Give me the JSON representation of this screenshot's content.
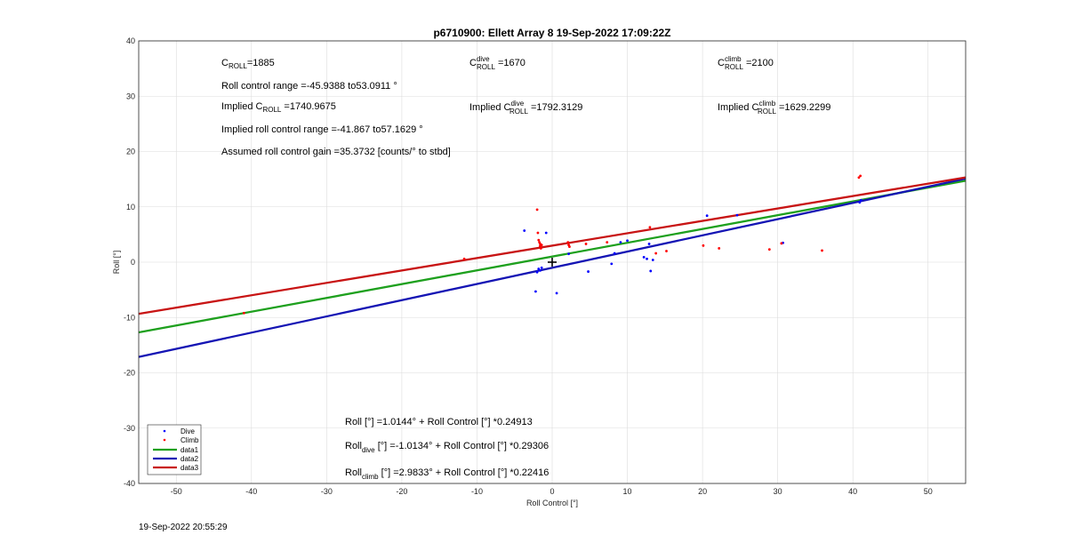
{
  "footer_timestamp": "19-Sep-2022 20:55:29",
  "chart_data": {
    "type": "scatter",
    "title": "p6710900: Ellett Array 8 19-Sep-2022 17:09:22Z",
    "xlabel": "Roll Control [°]",
    "ylabel": "Roll [°]",
    "xlim": [
      -55,
      55
    ],
    "ylim": [
      -40,
      40
    ],
    "xticks": [
      -50,
      -40,
      -30,
      -20,
      -10,
      0,
      10,
      20,
      30,
      40,
      50
    ],
    "yticks": [
      -40,
      -30,
      -20,
      -10,
      0,
      10,
      20,
      30,
      40
    ],
    "grid": true,
    "legend_position": "bottom-left",
    "legend": [
      "Dive",
      "Climb",
      "data1",
      "data2",
      "data3"
    ],
    "colors": {
      "dive": "#0000ff",
      "climb": "#ff0000",
      "data1": "#1ea01e",
      "data2": "#1414b4",
      "data3": "#c81414",
      "marker": "#000000"
    },
    "series": [
      {
        "name": "Dive",
        "kind": "points",
        "color": "#0000ff",
        "points": [
          [
            -3.7,
            5.7
          ],
          [
            -2.2,
            -5.3
          ],
          [
            -2.0,
            -1.8
          ],
          [
            -1.8,
            -1.2
          ],
          [
            -1.6,
            -1.5
          ],
          [
            -1.4,
            -1.0
          ],
          [
            -0.8,
            5.3
          ],
          [
            0.6,
            -5.6
          ],
          [
            2.2,
            1.5
          ],
          [
            4.8,
            -1.7
          ],
          [
            7.9,
            -0.3
          ],
          [
            8.3,
            1.6
          ],
          [
            9.1,
            3.6
          ],
          [
            10.0,
            3.9
          ],
          [
            12.2,
            0.9
          ],
          [
            12.6,
            0.6
          ],
          [
            12.9,
            3.3
          ],
          [
            13.1,
            -1.6
          ],
          [
            13.4,
            0.4
          ],
          [
            20.6,
            8.4
          ],
          [
            24.6,
            8.5
          ],
          [
            30.7,
            3.5
          ],
          [
            40.9,
            10.8
          ],
          [
            41.1,
            11.2
          ]
        ]
      },
      {
        "name": "Climb",
        "kind": "points",
        "color": "#ff0000",
        "points": [
          [
            -41.0,
            -9.2
          ],
          [
            -11.7,
            0.6
          ],
          [
            -2.0,
            9.5
          ],
          [
            -1.9,
            5.3
          ],
          [
            -1.8,
            4.0
          ],
          [
            -1.7,
            3.6
          ],
          [
            -1.6,
            3.3
          ],
          [
            -1.6,
            2.9
          ],
          [
            -1.5,
            2.5
          ],
          [
            -1.4,
            3.1
          ],
          [
            2.1,
            3.6
          ],
          [
            2.2,
            3.1
          ],
          [
            2.3,
            2.8
          ],
          [
            4.5,
            3.3
          ],
          [
            7.3,
            3.6
          ],
          [
            13.0,
            6.3
          ],
          [
            13.8,
            1.6
          ],
          [
            15.2,
            2.0
          ],
          [
            20.1,
            3.0
          ],
          [
            22.2,
            2.5
          ],
          [
            28.9,
            2.3
          ],
          [
            30.5,
            3.4
          ],
          [
            35.9,
            2.1
          ],
          [
            40.8,
            15.3
          ],
          [
            41.0,
            15.6
          ]
        ]
      },
      {
        "name": "data1",
        "kind": "line",
        "color": "#1ea01e",
        "intercept": 1.0144,
        "slope": 0.24913
      },
      {
        "name": "data2",
        "kind": "line",
        "color": "#1414b4",
        "intercept": -1.0134,
        "slope": 0.29306
      },
      {
        "name": "data3",
        "kind": "line",
        "color": "#c81414",
        "intercept": 2.9833,
        "slope": 0.22416
      }
    ],
    "center_marker": [
      0,
      0
    ],
    "annotations": {
      "c_roll": {
        "base": "C",
        "sub": "ROLL",
        "value": "=1885"
      },
      "c_roll_dive": {
        "base": "C",
        "sup": "dive",
        "sub": "ROLL",
        "value": " =1670"
      },
      "c_roll_climb": {
        "base": "C",
        "sup": "climb",
        "sub": "ROLL",
        "value": " =2100"
      },
      "roll_control_range": "Roll control range =-45.9388 to53.0911 °",
      "implied_c_roll": {
        "prefix": "Implied C",
        "sub": "ROLL",
        "value": " =1740.9675"
      },
      "implied_c_roll_dive": {
        "prefix": "Implied C",
        "sup": "dive",
        "sub": "ROLL",
        "value": " =1792.3129"
      },
      "implied_c_roll_climb": {
        "prefix": "Implied C",
        "sup": "climb",
        "sub": "ROLL",
        "value": " =1629.2299"
      },
      "implied_range": "Implied roll control range =-41.867 to57.1629 °",
      "gain": "Assumed roll control gain =35.3732 [counts/° to stbd]",
      "fit_all": "Roll [°] =1.0144° + Roll Control [°] *0.24913",
      "fit_dive": {
        "base": "Roll",
        "sub": "dive",
        "value": " [°] =-1.0134° + Roll Control [°] *0.29306"
      },
      "fit_climb": {
        "base": "Roll",
        "sub": "climb",
        "value": " [°] =2.9833° + Roll Control [°] *0.22416"
      }
    }
  }
}
